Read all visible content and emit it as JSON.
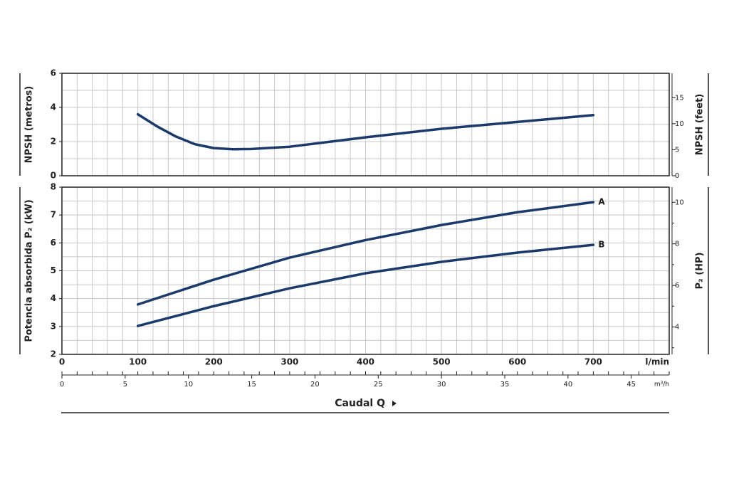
{
  "chart_data": [
    {
      "type": "line",
      "ylabel": "NPSH (metros)",
      "y2label": "NPSH (feet)",
      "xlim": [
        0,
        800
      ],
      "xgrid": [
        0,
        20,
        40,
        60,
        80,
        100,
        120,
        140,
        160,
        180,
        200,
        220,
        240,
        260,
        280,
        300,
        320,
        340,
        360,
        380,
        400,
        420,
        440,
        460,
        480,
        500,
        520,
        540,
        560,
        580,
        600,
        620,
        640,
        660,
        680,
        700,
        720,
        740,
        760,
        780,
        800
      ],
      "ylim": [
        0,
        6
      ],
      "yticks": [
        0,
        2,
        4,
        6
      ],
      "ygrid": [
        0,
        1,
        2,
        3,
        4,
        5,
        6
      ],
      "y2lim": [
        0,
        19.685
      ],
      "y2ticks": [
        0,
        5,
        10,
        15
      ],
      "x": [
        100,
        125,
        150,
        175,
        200,
        225,
        250,
        300,
        400,
        500,
        600,
        700
      ],
      "series": [
        {
          "color": "#1b3a6b",
          "values": [
            3.6,
            2.9,
            2.3,
            1.85,
            1.62,
            1.55,
            1.57,
            1.7,
            2.25,
            2.75,
            3.15,
            3.55
          ]
        }
      ]
    },
    {
      "type": "line",
      "ylabel": "Potencia absorbida P₂ (kW)",
      "y2label": "P₂ (HP)",
      "xlabel": "l/min",
      "xtitle": "Caudal Q",
      "xlim": [
        0,
        800
      ],
      "xticks": [
        0,
        100,
        200,
        300,
        400,
        500,
        600,
        700
      ],
      "xgrid": [
        0,
        20,
        40,
        60,
        80,
        100,
        120,
        140,
        160,
        180,
        200,
        220,
        240,
        260,
        280,
        300,
        320,
        340,
        360,
        380,
        400,
        420,
        440,
        460,
        480,
        500,
        520,
        540,
        560,
        580,
        600,
        620,
        640,
        660,
        680,
        700,
        720,
        740,
        760,
        780,
        800
      ],
      "x2label": "m³/h",
      "x2lim": [
        0,
        48
      ],
      "x2ticks": [
        0,
        5,
        10,
        15,
        20,
        25,
        30,
        35,
        40,
        45
      ],
      "ylim": [
        2,
        8
      ],
      "yticks": [
        2,
        3,
        4,
        5,
        6,
        7,
        8
      ],
      "ygrid": [
        2,
        2.5,
        3,
        3.5,
        4,
        4.5,
        5,
        5.5,
        6,
        6.5,
        7,
        7.5,
        8
      ],
      "y2lim": [
        2.682,
        10.728
      ],
      "y2ticks": [
        4,
        6,
        8,
        10
      ],
      "y2minorticks": [
        3,
        5,
        7,
        9
      ],
      "x": [
        100,
        200,
        300,
        400,
        500,
        600,
        700
      ],
      "series": [
        {
          "name": "A",
          "color": "#1b3a6b",
          "values": [
            3.79,
            4.68,
            5.47,
            6.1,
            6.64,
            7.1,
            7.46
          ]
        },
        {
          "name": "B",
          "color": "#1b3a6b",
          "values": [
            3.02,
            3.73,
            4.37,
            4.91,
            5.32,
            5.65,
            5.93
          ]
        }
      ]
    }
  ]
}
